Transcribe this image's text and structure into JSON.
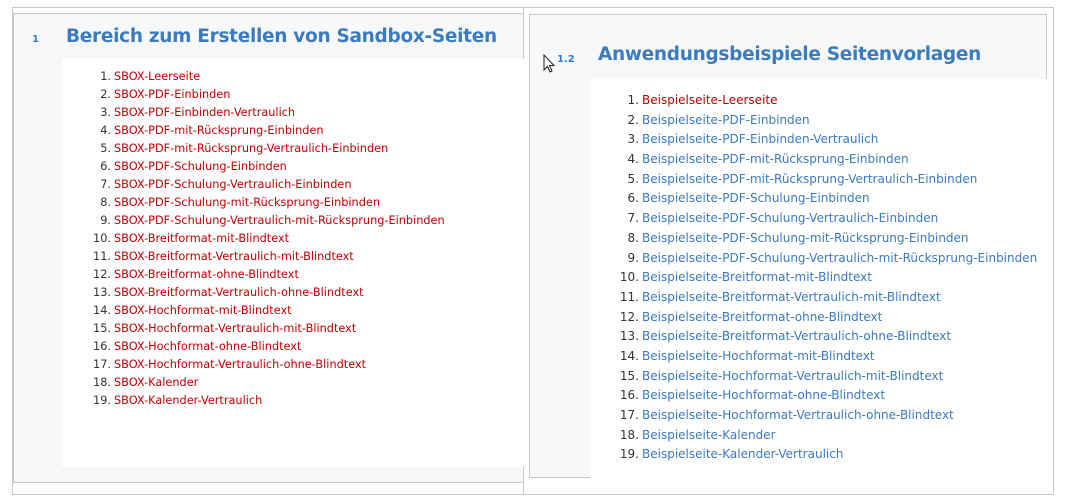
{
  "left": {
    "number": "1",
    "title": "Bereich zum Erstellen von Sandbox-Seiten",
    "items": [
      {
        "n": "1.",
        "label": "SBOX-Leerseite"
      },
      {
        "n": "2.",
        "label": "SBOX-PDF-Einbinden"
      },
      {
        "n": "3.",
        "label": "SBOX-PDF-Einbinden-Vertraulich"
      },
      {
        "n": "4.",
        "label": "SBOX-PDF-mit-Rücksprung-Einbinden"
      },
      {
        "n": "5.",
        "label": "SBOX-PDF-mit-Rücksprung-Vertraulich-Einbinden"
      },
      {
        "n": "6.",
        "label": "SBOX-PDF-Schulung-Einbinden"
      },
      {
        "n": "7.",
        "label": "SBOX-PDF-Schulung-Vertraulich-Einbinden"
      },
      {
        "n": "8.",
        "label": "SBOX-PDF-Schulung-mit-Rücksprung-Einbinden"
      },
      {
        "n": "9.",
        "label": "SBOX-PDF-Schulung-Vertraulich-mit-Rücksprung-Einbinden"
      },
      {
        "n": "10.",
        "label": "SBOX-Breitformat-mit-Blindtext"
      },
      {
        "n": "11.",
        "label": "SBOX-Breitformat-Vertraulich-mit-Blindtext"
      },
      {
        "n": "12.",
        "label": "SBOX-Breitformat-ohne-Blindtext"
      },
      {
        "n": "13.",
        "label": "SBOX-Breitformat-Vertraulich-ohne-Blindtext"
      },
      {
        "n": "14.",
        "label": "SBOX-Hochformat-mit-Blindtext"
      },
      {
        "n": "15.",
        "label": "SBOX-Hochformat-Vertraulich-mit-Blindtext"
      },
      {
        "n": "16.",
        "label": "SBOX-Hochformat-ohne-Blindtext"
      },
      {
        "n": "17.",
        "label": "SBOX-Hochformat-Vertraulich-ohne-Blindtext"
      },
      {
        "n": "18.",
        "label": "SBOX-Kalender"
      },
      {
        "n": "19.",
        "label": "SBOX-Kalender-Vertraulich"
      }
    ]
  },
  "right": {
    "number": "1.2",
    "title": "Anwendungsbeispiele Seitenvorlagen",
    "items": [
      {
        "n": "1.",
        "label": "Beispielseite-Leerseite",
        "color": "red"
      },
      {
        "n": "2.",
        "label": "Beispielseite-PDF-Einbinden",
        "color": "blue"
      },
      {
        "n": "3.",
        "label": "Beispielseite-PDF-Einbinden-Vertraulich",
        "color": "blue"
      },
      {
        "n": "4.",
        "label": "Beispielseite-PDF-mit-Rücksprung-Einbinden",
        "color": "blue"
      },
      {
        "n": "5.",
        "label": "Beispielseite-PDF-mit-Rücksprung-Vertraulich-Einbinden",
        "color": "blue"
      },
      {
        "n": "6.",
        "label": "Beispielseite-PDF-Schulung-Einbinden",
        "color": "blue"
      },
      {
        "n": "7.",
        "label": "Beispielseite-PDF-Schulung-Vertraulich-Einbinden",
        "color": "blue"
      },
      {
        "n": "8.",
        "label": "Beispielseite-PDF-Schulung-mit-Rücksprung-Einbinden",
        "color": "blue"
      },
      {
        "n": "9.",
        "label": "Beispielseite-PDF-Schulung-Vertraulich-mit-Rücksprung-Einbinden",
        "color": "blue"
      },
      {
        "n": "10.",
        "label": "Beispielseite-Breitformat-mit-Blindtext",
        "color": "blue"
      },
      {
        "n": "11.",
        "label": "Beispielseite-Breitformat-Vertraulich-mit-Blindtext",
        "color": "blue"
      },
      {
        "n": "12.",
        "label": "Beispielseite-Breitformat-ohne-Blindtext",
        "color": "blue"
      },
      {
        "n": "13.",
        "label": "Beispielseite-Breitformat-Vertraulich-ohne-Blindtext",
        "color": "blue"
      },
      {
        "n": "14.",
        "label": "Beispielseite-Hochformat-mit-Blindtext",
        "color": "blue"
      },
      {
        "n": "15.",
        "label": "Beispielseite-Hochformat-Vertraulich-mit-Blindtext",
        "color": "blue"
      },
      {
        "n": "16.",
        "label": "Beispielseite-Hochformat-ohne-Blindtext",
        "color": "blue"
      },
      {
        "n": "17.",
        "label": "Beispielseite-Hochformat-Vertraulich-ohne-Blindtext",
        "color": "blue"
      },
      {
        "n": "18.",
        "label": "Beispielseite-Kalender",
        "color": "blue"
      },
      {
        "n": "19.",
        "label": "Beispielseite-Kalender-Vertraulich",
        "color": "blue"
      }
    ]
  },
  "colors": {
    "heading": "#3b7cc0",
    "link_visited": "#c00000",
    "link": "#3a7abf"
  }
}
